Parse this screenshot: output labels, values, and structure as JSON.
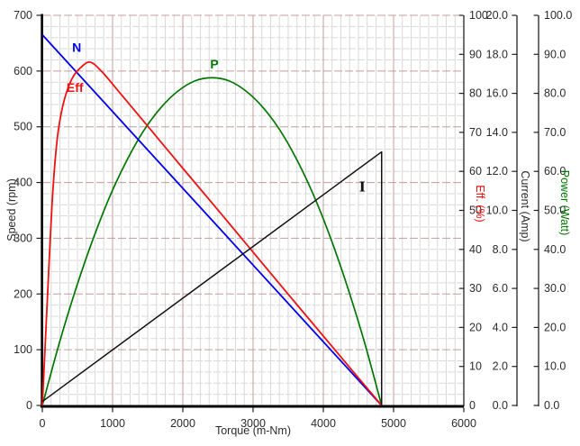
{
  "chart_data": {
    "type": "line",
    "x_axis": {
      "label": "Torque (m-Nm)",
      "min": 0,
      "max": 6000,
      "major_tick": 1000,
      "minor_tick": 125,
      "tick_labels": [
        "0",
        "1000",
        "2000",
        "3000",
        "4000",
        "5000",
        "6000"
      ]
    },
    "y_axes": [
      {
        "id": "speed",
        "label": "Speed (rpm)",
        "min": 0,
        "max": 700,
        "major_tick": 100,
        "minor_tick": 20,
        "side": "left",
        "color": "#2b2b2b",
        "tick_labels": [
          "0",
          "100",
          "200",
          "300",
          "400",
          "500",
          "600",
          "700"
        ]
      },
      {
        "id": "eff",
        "label": "Eff. (%)",
        "min": 0,
        "max": 100,
        "major_tick": 10,
        "side": "right",
        "color": "#ee1111",
        "tick_labels": [
          "0",
          "10",
          "20",
          "30",
          "40",
          "50",
          "60",
          "70",
          "80",
          "90",
          "100"
        ]
      },
      {
        "id": "current",
        "label": "Current (Amp)",
        "min": 0,
        "max": 20,
        "major_tick": 2,
        "side": "right",
        "color": "#2b2b2b",
        "tick_labels": [
          "0.0",
          "2.0",
          "4.0",
          "6.0",
          "8.0",
          "10.0",
          "12.0",
          "14.0",
          "16.0",
          "18.0",
          "20.0"
        ]
      },
      {
        "id": "power",
        "label": "Power (Watt)",
        "min": 0,
        "max": 100,
        "major_tick": 10,
        "side": "right",
        "color": "#007700",
        "tick_labels": [
          "0.0",
          "10.0",
          "20.0",
          "30.0",
          "40.0",
          "50.0",
          "60.0",
          "70.0",
          "80.0",
          "90.0",
          "100.0"
        ]
      }
    ],
    "grid": {
      "minor_color": "#d9d9d9",
      "major_color": "#c49c9c",
      "minor_horizontal_dash": "8,2",
      "major_horizontal_dash": "9,3"
    },
    "series": [
      {
        "name": "P",
        "axis": "power",
        "color": "#007700",
        "width": 1.7,
        "smooth": true,
        "points": [
          [
            0,
            0
          ],
          [
            242,
            16.0
          ],
          [
            483,
            30.2
          ],
          [
            725,
            42.8
          ],
          [
            966,
            53.8
          ],
          [
            1208,
            63.0
          ],
          [
            1449,
            70.6
          ],
          [
            1691,
            76.4
          ],
          [
            1932,
            80.6
          ],
          [
            2174,
            83.2
          ],
          [
            2415,
            84.0
          ],
          [
            2657,
            83.2
          ],
          [
            2898,
            80.6
          ],
          [
            3140,
            76.4
          ],
          [
            3381,
            70.6
          ],
          [
            3623,
            63.0
          ],
          [
            3864,
            53.8
          ],
          [
            4106,
            42.8
          ],
          [
            4347,
            30.2
          ],
          [
            4589,
            16.0
          ],
          [
            4830,
            0
          ]
        ],
        "label": {
          "text": "P",
          "x": 2450,
          "y": 87.5
        }
      },
      {
        "name": "N",
        "axis": "speed",
        "color": "#0000ee",
        "width": 1.8,
        "smooth": false,
        "points": [
          [
            0,
            665
          ],
          [
            4830,
            0
          ]
        ],
        "label": {
          "text": "N",
          "x": 490,
          "y": 643
        }
      },
      {
        "name": "Eff",
        "axis": "eff",
        "color": "#ee1111",
        "width": 1.8,
        "smooth": true,
        "points": [
          [
            0,
            0
          ],
          [
            50,
            19
          ],
          [
            100,
            38
          ],
          [
            150,
            55
          ],
          [
            210,
            68
          ],
          [
            270,
            75
          ],
          [
            340,
            80
          ],
          [
            430,
            84
          ],
          [
            540,
            86.5
          ],
          [
            680,
            88
          ],
          [
            850,
            85.5
          ],
          [
            1100,
            80.2
          ],
          [
            1500,
            71.6
          ],
          [
            2000,
            60.8
          ],
          [
            2500,
            50.1
          ],
          [
            3000,
            39.3
          ],
          [
            3500,
            28.5
          ],
          [
            4000,
            17.8
          ],
          [
            4400,
            9.2
          ],
          [
            4830,
            0
          ]
        ],
        "label": {
          "text": "Eff",
          "x": 465,
          "y": 81.5
        }
      },
      {
        "name": "I",
        "axis": "current",
        "color": "#111111",
        "width": 1.5,
        "smooth": false,
        "points": [
          [
            0,
            0.2
          ],
          [
            4830,
            13.0
          ],
          [
            4830,
            0
          ]
        ],
        "label": {
          "text": "I",
          "x": 4555,
          "y": 11.2,
          "serif": true
        }
      }
    ]
  }
}
